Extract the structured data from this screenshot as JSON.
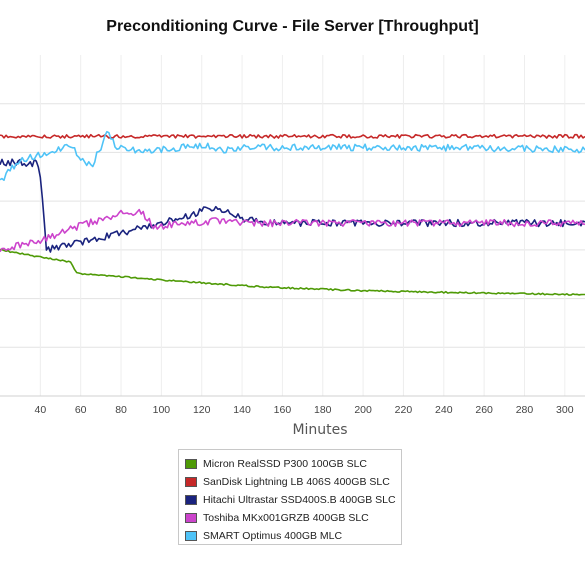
{
  "chart_data": {
    "type": "line",
    "title": "Preconditioning Curve - File Server [Throughput]",
    "xlabel": "Minutes",
    "ylabel": "",
    "x_ticks": [
      40,
      60,
      80,
      100,
      120,
      140,
      160,
      180,
      200,
      220,
      240,
      260,
      280,
      300
    ],
    "xlim": [
      20,
      310
    ],
    "ylim": [
      0,
      7
    ],
    "y_ticks": [
      1,
      2,
      3,
      4,
      5,
      6
    ],
    "grid": true,
    "legend_position": "bottom",
    "series": [
      {
        "name": "Micron RealSSD P300 100GB SLC",
        "color": "#4e9a06",
        "x": [
          20,
          40,
          55,
          58,
          80,
          100,
          150,
          200,
          250,
          310
        ],
        "y": [
          3.0,
          2.85,
          2.75,
          2.52,
          2.45,
          2.38,
          2.24,
          2.16,
          2.12,
          2.08
        ]
      },
      {
        "name": "SanDisk Lightning LB 406S 400GB SLC",
        "color": "#c62828",
        "x": [
          20,
          310
        ],
        "y": [
          5.33,
          5.33
        ]
      },
      {
        "name": "Hitachi Ultrastar SSD400S.B 400GB SLC",
        "color": "#1a237e",
        "x": [
          20,
          31,
          32,
          38,
          40,
          43,
          55,
          80,
          100,
          115,
          123,
          130,
          140,
          150,
          200,
          250,
          310
        ],
        "y": [
          4.8,
          4.8,
          4.72,
          4.8,
          4.5,
          3.0,
          3.1,
          3.35,
          3.55,
          3.7,
          3.85,
          3.8,
          3.65,
          3.55,
          3.55,
          3.55,
          3.55
        ]
      },
      {
        "name": "Toshiba MKx001GRZB 400GB SLC",
        "color": "#cc44cc",
        "x": [
          20,
          40,
          60,
          80,
          90,
          97,
          110,
          130,
          150,
          200,
          250,
          310
        ],
        "y": [
          3.0,
          3.2,
          3.5,
          3.75,
          3.78,
          3.45,
          3.55,
          3.6,
          3.55,
          3.55,
          3.55,
          3.55
        ]
      },
      {
        "name": "SMART Optimus 400GB MLC",
        "color": "#4fc3f7",
        "x": [
          20,
          30,
          45,
          55,
          60,
          65,
          70,
          73,
          78,
          85,
          95,
          110,
          120,
          130,
          140,
          160,
          200,
          250,
          310
        ],
        "y": [
          4.4,
          4.85,
          5.0,
          5.15,
          4.9,
          4.7,
          5.1,
          5.45,
          5.1,
          5.05,
          5.05,
          5.1,
          5.15,
          5.05,
          5.1,
          5.1,
          5.1,
          5.1,
          5.05
        ]
      }
    ]
  }
}
